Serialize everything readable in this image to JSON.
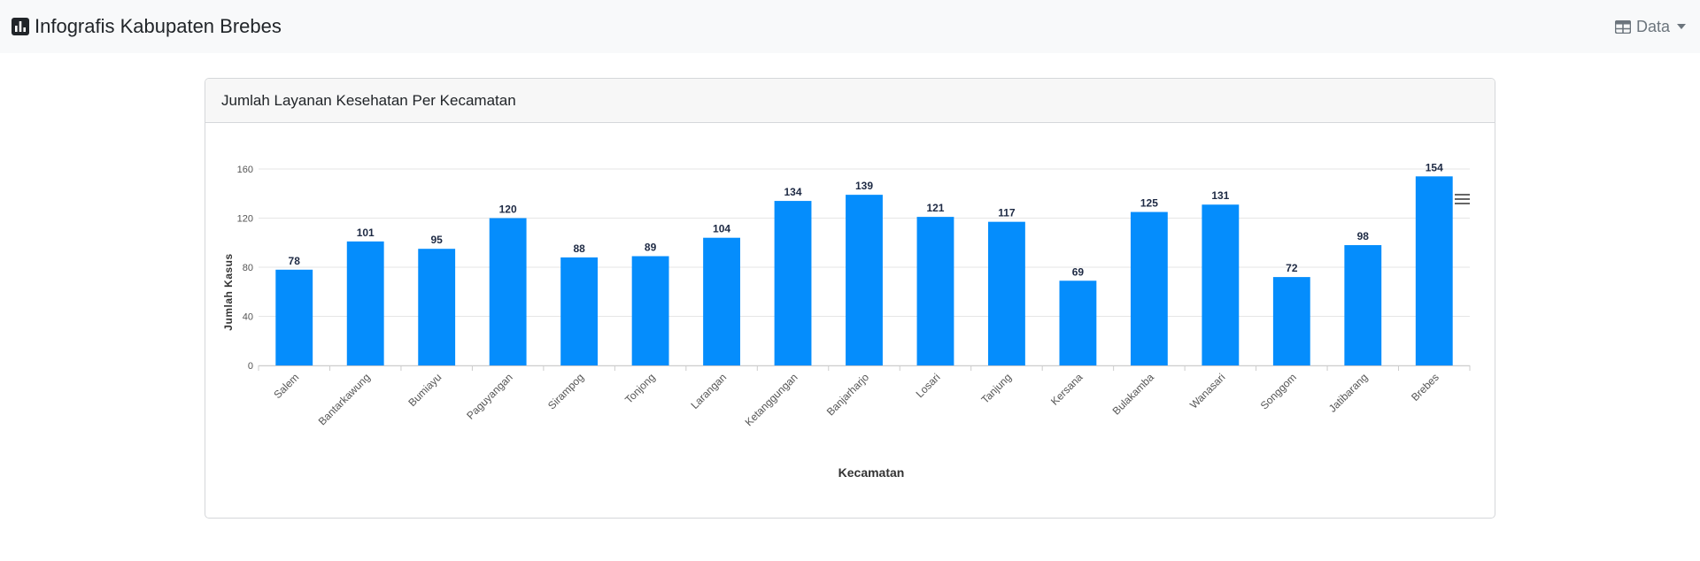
{
  "navbar": {
    "brand_title": "Infografis Kabupaten Brebes",
    "brand_icon": "bar-chart-icon",
    "menu_label": "Data",
    "menu_icon": "table-icon"
  },
  "card": {
    "header_title": "Jumlah Layanan Kesehatan Per Kecamatan"
  },
  "colors": {
    "bar": "#058dfc",
    "data_label": "#1e2a44",
    "axis_text": "#555555",
    "grid": "#e6e6e6"
  },
  "chart_data": {
    "type": "bar",
    "categories": [
      "Salem",
      "Bantarkawung",
      "Bumiayu",
      "Paguyangan",
      "Sirampog",
      "Tonjong",
      "Larangan",
      "Ketanggungan",
      "Banjarharjo",
      "Losari",
      "Tanjung",
      "Kersana",
      "Bulakamba",
      "Wanasari",
      "Songgom",
      "Jatibarang",
      "Brebes"
    ],
    "values": [
      78,
      101,
      95,
      120,
      88,
      89,
      104,
      134,
      139,
      121,
      117,
      69,
      125,
      131,
      72,
      98,
      154
    ],
    "title": "",
    "xlabel": "Kecamatan",
    "ylabel": "Jumlah Kasus",
    "ylim": [
      0,
      160
    ],
    "yticks": [
      0,
      40,
      80,
      120,
      160
    ],
    "grid": true,
    "legend": false,
    "data_labels": true
  }
}
